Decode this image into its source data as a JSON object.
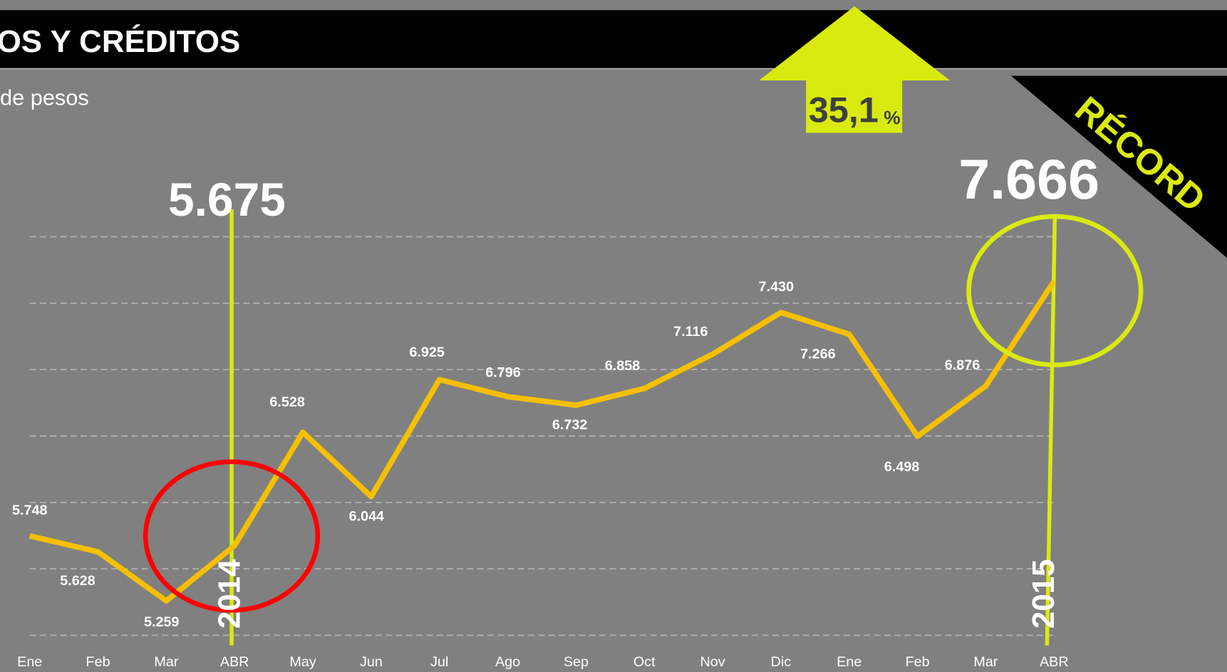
{
  "chart_data": {
    "type": "line",
    "title": "OS Y CRÉDITOS",
    "subtitle": "de pesos",
    "categories": [
      "Ene",
      "Feb",
      "Mar",
      "ABR",
      "May",
      "Jun",
      "Jul",
      "Ago",
      "Sep",
      "Oct",
      "Nov",
      "Dic",
      "Ene",
      "Feb",
      "Mar",
      "ABR"
    ],
    "values": [
      5748,
      5628,
      5259,
      5675,
      6528,
      6044,
      6925,
      6796,
      6732,
      6858,
      7116,
      7430,
      7266,
      6498,
      6876,
      7666
    ],
    "value_labels": [
      "5.748",
      "5.628",
      "5.259",
      "5.675",
      "6.528",
      "6.044",
      "6.925",
      "6.796",
      "6.732",
      "6.858",
      "7.116",
      "7.430",
      "7.266",
      "6.498",
      "6.876",
      "7.666"
    ],
    "color": "#f5c000",
    "ylim": [
      5000,
      8000
    ],
    "yticks": [
      5000,
      5500,
      6000,
      6500,
      7000,
      7500,
      8000
    ],
    "grid": true,
    "annotations": {
      "growth": "35,1",
      "growth_unit": "%",
      "record": "RÉCORD",
      "year_start": "2014",
      "year_end": "2015"
    }
  }
}
